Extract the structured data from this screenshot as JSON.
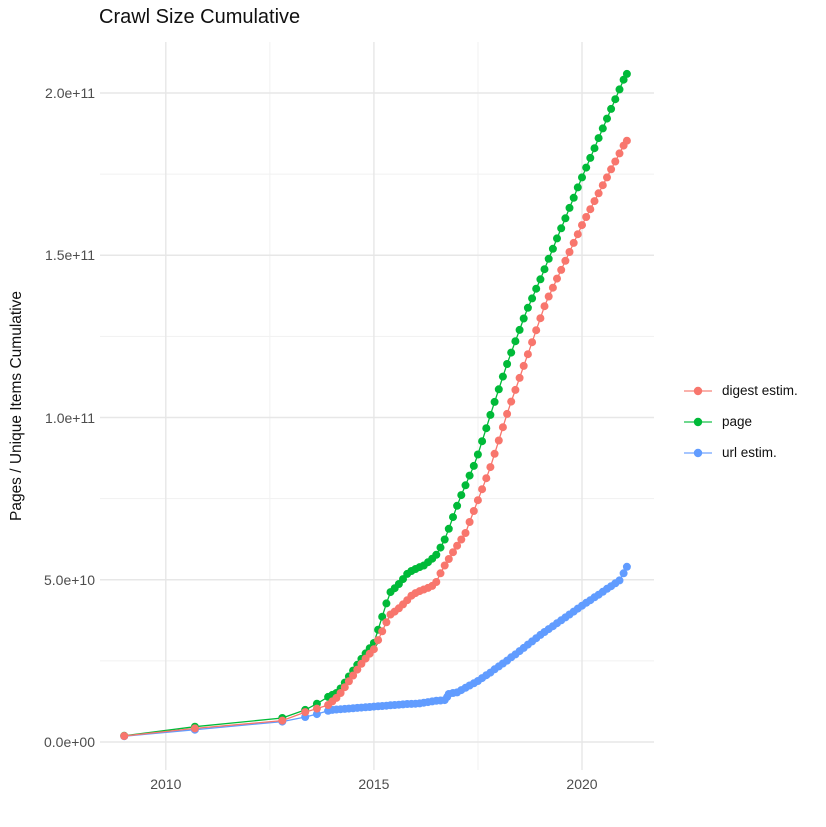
{
  "title": "Crawl Size Cumulative",
  "y_axis": {
    "label": "Pages / Unique Items Cumulative",
    "ticks": [
      {
        "value": 200,
        "label": "2.0e+11"
      },
      {
        "value": 150,
        "label": "1.5e+11"
      },
      {
        "value": 100,
        "label": "1.0e+11"
      },
      {
        "value": 50,
        "label": "5.0e+10"
      },
      {
        "value": 0,
        "label": "0.0e+00"
      }
    ],
    "minor_values": [
      175,
      125,
      75,
      25
    ]
  },
  "x_axis": {
    "ticks": [
      {
        "value": 2010,
        "label": "2010"
      },
      {
        "value": 2015,
        "label": "2015"
      },
      {
        "value": 2020,
        "label": "2020"
      }
    ],
    "minor_values": [
      2012.5,
      2017.5
    ]
  },
  "chart_data": {
    "type": "line",
    "title": "Crawl Size Cumulative",
    "xlabel": "",
    "ylabel": "Pages / Unique Items Cumulative",
    "value_unit": "billions of pages / unique items (multiply by 1e9)",
    "xlim": [
      2008.4,
      2021.75
    ],
    "ylim": [
      0,
      210000000000.0
    ],
    "grid": true,
    "legend_position": "right",
    "marker": "point",
    "series": [
      {
        "name": "digest estim.",
        "color": "#F8766D",
        "points": [
          [
            2009.0,
            1.85
          ],
          [
            2010.7,
            4.2
          ],
          [
            2012.8,
            6.6
          ],
          [
            2013.35,
            9.2
          ],
          [
            2013.63,
            10.3
          ],
          [
            2013.9,
            11.4
          ],
          [
            2014.0,
            12.5
          ],
          [
            2014.1,
            13.6
          ],
          [
            2014.2,
            15.1
          ],
          [
            2014.3,
            16.9
          ],
          [
            2014.4,
            18.7
          ],
          [
            2014.5,
            20.5
          ],
          [
            2014.6,
            22.3
          ],
          [
            2014.7,
            24.1
          ],
          [
            2014.8,
            25.7
          ],
          [
            2014.9,
            27.2
          ],
          [
            2015.0,
            28.6
          ],
          [
            2015.1,
            31.4
          ],
          [
            2015.2,
            34.1
          ],
          [
            2015.3,
            36.9
          ],
          [
            2015.4,
            39.3
          ],
          [
            2015.5,
            40.2
          ],
          [
            2015.6,
            41.2
          ],
          [
            2015.7,
            42.4
          ],
          [
            2015.8,
            43.7
          ],
          [
            2015.9,
            45.1
          ],
          [
            2016.0,
            45.9
          ],
          [
            2016.1,
            46.5
          ],
          [
            2016.2,
            47.0
          ],
          [
            2016.3,
            47.5
          ],
          [
            2016.4,
            48.1
          ],
          [
            2016.5,
            49.3
          ],
          [
            2016.6,
            52.0
          ],
          [
            2016.7,
            54.4
          ],
          [
            2016.8,
            56.4
          ],
          [
            2016.9,
            58.5
          ],
          [
            2017.0,
            60.5
          ],
          [
            2017.1,
            62.4
          ],
          [
            2017.2,
            64.4
          ],
          [
            2017.3,
            67.8
          ],
          [
            2017.4,
            71.2
          ],
          [
            2017.5,
            74.5
          ],
          [
            2017.6,
            77.9
          ],
          [
            2017.7,
            81.3
          ],
          [
            2017.8,
            84.7
          ],
          [
            2017.9,
            88.8
          ],
          [
            2018.0,
            92.9
          ],
          [
            2018.1,
            97.0
          ],
          [
            2018.2,
            101.1
          ],
          [
            2018.3,
            104.9
          ],
          [
            2018.4,
            108.5
          ],
          [
            2018.5,
            112.2
          ],
          [
            2018.6,
            115.9
          ],
          [
            2018.7,
            119.5
          ],
          [
            2018.8,
            123.2
          ],
          [
            2018.9,
            126.9
          ],
          [
            2019.0,
            130.6
          ],
          [
            2019.1,
            134.3
          ],
          [
            2019.2,
            137.3
          ],
          [
            2019.3,
            140.0
          ],
          [
            2019.4,
            142.8
          ],
          [
            2019.5,
            145.5
          ],
          [
            2019.6,
            148.3
          ],
          [
            2019.7,
            151.0
          ],
          [
            2019.8,
            153.8
          ],
          [
            2019.9,
            156.5
          ],
          [
            2020.0,
            159.3
          ],
          [
            2020.1,
            161.8
          ],
          [
            2020.2,
            164.2
          ],
          [
            2020.3,
            166.7
          ],
          [
            2020.4,
            169.1
          ],
          [
            2020.5,
            171.6
          ],
          [
            2020.6,
            174.0
          ],
          [
            2020.7,
            176.5
          ],
          [
            2020.8,
            178.9
          ],
          [
            2020.9,
            181.4
          ],
          [
            2021.0,
            183.8
          ],
          [
            2021.08,
            185.3
          ]
        ]
      },
      {
        "name": "page",
        "color": "#00BA38",
        "points": [
          [
            2009.0,
            1.9
          ],
          [
            2010.7,
            4.7
          ],
          [
            2012.8,
            7.4
          ],
          [
            2013.35,
            9.9
          ],
          [
            2013.63,
            11.8
          ],
          [
            2013.9,
            13.9
          ],
          [
            2014.0,
            14.5
          ],
          [
            2014.1,
            15.1
          ],
          [
            2014.2,
            16.5
          ],
          [
            2014.3,
            18.3
          ],
          [
            2014.4,
            20.2
          ],
          [
            2014.5,
            22.0
          ],
          [
            2014.6,
            23.8
          ],
          [
            2014.7,
            25.6
          ],
          [
            2014.8,
            27.3
          ],
          [
            2014.9,
            28.9
          ],
          [
            2015.0,
            30.5
          ],
          [
            2015.1,
            34.6
          ],
          [
            2015.2,
            38.6
          ],
          [
            2015.3,
            42.7
          ],
          [
            2015.4,
            46.2
          ],
          [
            2015.5,
            47.4
          ],
          [
            2015.6,
            48.7
          ],
          [
            2015.7,
            50.2
          ],
          [
            2015.8,
            51.8
          ],
          [
            2015.9,
            52.7
          ],
          [
            2016.0,
            53.3
          ],
          [
            2016.1,
            53.9
          ],
          [
            2016.2,
            54.4
          ],
          [
            2016.3,
            55.4
          ],
          [
            2016.4,
            56.5
          ],
          [
            2016.5,
            57.7
          ],
          [
            2016.6,
            59.9
          ],
          [
            2016.7,
            62.4
          ],
          [
            2016.8,
            65.7
          ],
          [
            2016.9,
            69.3
          ],
          [
            2017.0,
            72.8
          ],
          [
            2017.1,
            76.1
          ],
          [
            2017.2,
            79.1
          ],
          [
            2017.3,
            82.1
          ],
          [
            2017.4,
            85.1
          ],
          [
            2017.5,
            88.6
          ],
          [
            2017.6,
            92.7
          ],
          [
            2017.7,
            96.7
          ],
          [
            2017.8,
            100.8
          ],
          [
            2017.9,
            104.8
          ],
          [
            2018.0,
            108.7
          ],
          [
            2018.1,
            112.6
          ],
          [
            2018.2,
            116.5
          ],
          [
            2018.3,
            120.0
          ],
          [
            2018.4,
            123.5
          ],
          [
            2018.5,
            127.0
          ],
          [
            2018.6,
            130.5
          ],
          [
            2018.7,
            133.8
          ],
          [
            2018.8,
            136.7
          ],
          [
            2018.9,
            139.7
          ],
          [
            2019.0,
            142.6
          ],
          [
            2019.1,
            145.7
          ],
          [
            2019.2,
            148.9
          ],
          [
            2019.3,
            152.0
          ],
          [
            2019.4,
            155.2
          ],
          [
            2019.5,
            158.3
          ],
          [
            2019.6,
            161.4
          ],
          [
            2019.7,
            164.6
          ],
          [
            2019.8,
            167.7
          ],
          [
            2019.9,
            170.9
          ],
          [
            2020.0,
            174.0
          ],
          [
            2020.1,
            177.0
          ],
          [
            2020.2,
            180.0
          ],
          [
            2020.3,
            183.0
          ],
          [
            2020.4,
            186.1
          ],
          [
            2020.5,
            189.1
          ],
          [
            2020.6,
            192.1
          ],
          [
            2020.7,
            195.1
          ],
          [
            2020.8,
            198.1
          ],
          [
            2020.9,
            201.1
          ],
          [
            2021.0,
            204.1
          ],
          [
            2021.08,
            205.9
          ]
        ]
      },
      {
        "name": "url estim.",
        "color": "#619CFF",
        "points": [
          [
            2009.0,
            1.8
          ],
          [
            2010.7,
            3.8
          ],
          [
            2012.8,
            6.3
          ],
          [
            2013.35,
            7.7
          ],
          [
            2013.63,
            8.6
          ],
          [
            2013.9,
            9.6
          ],
          [
            2014.0,
            9.9
          ],
          [
            2014.1,
            10.0
          ],
          [
            2014.2,
            10.1
          ],
          [
            2014.3,
            10.2
          ],
          [
            2014.4,
            10.3
          ],
          [
            2014.5,
            10.4
          ],
          [
            2014.6,
            10.5
          ],
          [
            2014.7,
            10.6
          ],
          [
            2014.8,
            10.7
          ],
          [
            2014.9,
            10.8
          ],
          [
            2015.0,
            10.9
          ],
          [
            2015.1,
            11.0
          ],
          [
            2015.2,
            11.1
          ],
          [
            2015.3,
            11.2
          ],
          [
            2015.4,
            11.3
          ],
          [
            2015.5,
            11.4
          ],
          [
            2015.6,
            11.5
          ],
          [
            2015.7,
            11.6
          ],
          [
            2015.8,
            11.7
          ],
          [
            2015.9,
            11.75
          ],
          [
            2016.0,
            11.8
          ],
          [
            2016.1,
            11.9
          ],
          [
            2016.2,
            12.1
          ],
          [
            2016.3,
            12.3
          ],
          [
            2016.4,
            12.5
          ],
          [
            2016.5,
            12.7
          ],
          [
            2016.6,
            12.8
          ],
          [
            2016.7,
            12.9
          ],
          [
            2016.76,
            13.9
          ],
          [
            2016.8,
            14.8
          ],
          [
            2016.9,
            15.1
          ],
          [
            2017.0,
            15.3
          ],
          [
            2017.1,
            16.0
          ],
          [
            2017.2,
            16.7
          ],
          [
            2017.3,
            17.4
          ],
          [
            2017.4,
            18.1
          ],
          [
            2017.5,
            18.8
          ],
          [
            2017.6,
            19.7
          ],
          [
            2017.7,
            20.6
          ],
          [
            2017.8,
            21.4
          ],
          [
            2017.9,
            22.4
          ],
          [
            2018.0,
            23.3
          ],
          [
            2018.1,
            24.2
          ],
          [
            2018.2,
            25.1
          ],
          [
            2018.3,
            26.1
          ],
          [
            2018.4,
            27.0
          ],
          [
            2018.5,
            28.0
          ],
          [
            2018.6,
            29.0
          ],
          [
            2018.7,
            30.0
          ],
          [
            2018.8,
            31.0
          ],
          [
            2018.9,
            32.0
          ],
          [
            2019.0,
            33.0
          ],
          [
            2019.1,
            33.9
          ],
          [
            2019.2,
            34.8
          ],
          [
            2019.3,
            35.7
          ],
          [
            2019.4,
            36.6
          ],
          [
            2019.5,
            37.5
          ],
          [
            2019.6,
            38.4
          ],
          [
            2019.7,
            39.3
          ],
          [
            2019.8,
            40.2
          ],
          [
            2019.9,
            41.1
          ],
          [
            2020.0,
            42.0
          ],
          [
            2020.1,
            42.9
          ],
          [
            2020.2,
            43.7
          ],
          [
            2020.3,
            44.6
          ],
          [
            2020.4,
            45.4
          ],
          [
            2020.5,
            46.3
          ],
          [
            2020.6,
            47.2
          ],
          [
            2020.7,
            48.0
          ],
          [
            2020.8,
            48.9
          ],
          [
            2020.9,
            49.8
          ],
          [
            2021.0,
            52.0
          ],
          [
            2021.08,
            54.0
          ]
        ]
      }
    ]
  }
}
